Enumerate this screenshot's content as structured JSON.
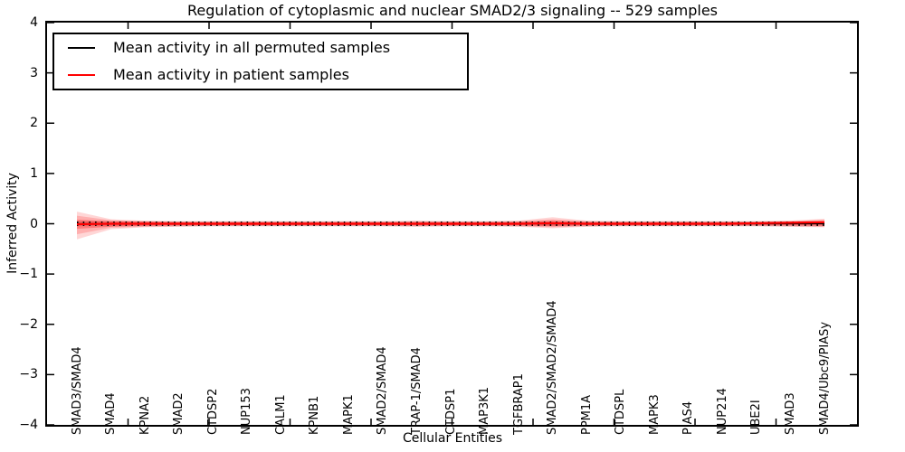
{
  "title": "Regulation of cytoplasmic and nuclear SMAD2/3 signaling -- 529 samples",
  "xlabel": "Cellular Entities",
  "ylabel": "Inferred Activity",
  "legend": [
    {
      "label": "Mean activity in all permuted samples",
      "color": "#000000"
    },
    {
      "label": "Mean activity in patient samples",
      "color": "#ff0000"
    }
  ],
  "chart_data": {
    "type": "line",
    "title": "Regulation of cytoplasmic and nuclear SMAD2/3 signaling -- 529 samples",
    "xlabel": "Cellular Entities",
    "ylabel": "Inferred Activity",
    "ylim": [
      -4,
      4
    ],
    "ytick_labels": [
      "4",
      "3",
      "2",
      "1",
      "0",
      "−1",
      "−2",
      "−3",
      "−4"
    ],
    "grid": false,
    "legend_position": "upper left",
    "categories": [
      "SMAD3/SMAD4",
      "SMAD4",
      "KPNA2",
      "SMAD2",
      "CTDSP2",
      "NUP153",
      "CALM1",
      "KPNB1",
      "MAPK1",
      "SMAD2/SMAD4",
      "TRAP-1/SMAD4",
      "CTDSP1",
      "MAP3K1",
      "TGFBRAP1",
      "SMAD2/SMAD2/SMAD4",
      "PPM1A",
      "CTDSPL",
      "MAPK3",
      "PIAS4",
      "NUP214",
      "UBE2I",
      "SMAD3",
      "SMAD4/Ubc9/PIASy"
    ],
    "series": [
      {
        "name": "Mean activity in all permuted samples",
        "color": "#000000",
        "values": [
          0,
          0,
          0,
          0,
          0,
          0,
          0,
          0,
          0,
          0,
          0,
          0,
          0,
          0,
          0,
          0,
          0,
          0,
          0,
          0,
          0,
          0,
          0
        ]
      },
      {
        "name": "Mean activity in patient samples",
        "color": "#ff0000",
        "values": [
          -0.01,
          0,
          0,
          0,
          0,
          0,
          0,
          0,
          0,
          0,
          0,
          0,
          0,
          0,
          0.01,
          0,
          0,
          0,
          0,
          0,
          0.01,
          0.02,
          0.03
        ]
      }
    ],
    "bands": {
      "permuted": {
        "hi": 0.05,
        "lo": -0.05,
        "color": "rgba(110,110,110,0.28)"
      },
      "patient_outer": {
        "color": "rgba(255,0,0,0.16)",
        "hi": [
          0.24,
          0.09,
          0.06,
          0.05,
          0.05,
          0.05,
          0.05,
          0.05,
          0.05,
          0.05,
          0.06,
          0.05,
          0.05,
          0.06,
          0.13,
          0.06,
          0.05,
          0.05,
          0.05,
          0.05,
          0.05,
          0.06,
          0.1
        ],
        "lo": [
          -0.31,
          -0.11,
          -0.07,
          -0.06,
          -0.05,
          -0.05,
          -0.05,
          -0.05,
          -0.05,
          -0.05,
          -0.06,
          -0.05,
          -0.05,
          -0.06,
          -0.09,
          -0.06,
          -0.05,
          -0.05,
          -0.05,
          -0.05,
          -0.05,
          -0.06,
          -0.07
        ]
      },
      "patient_mid": {
        "color": "rgba(255,0,0,0.18)",
        "hi": [
          0.16,
          0.07,
          0.05,
          0.04,
          0.04,
          0.04,
          0.04,
          0.04,
          0.04,
          0.04,
          0.05,
          0.04,
          0.04,
          0.05,
          0.09,
          0.05,
          0.04,
          0.04,
          0.04,
          0.04,
          0.04,
          0.05,
          0.08
        ],
        "lo": [
          -0.21,
          -0.08,
          -0.06,
          -0.05,
          -0.04,
          -0.04,
          -0.04,
          -0.04,
          -0.04,
          -0.04,
          -0.05,
          -0.04,
          -0.04,
          -0.05,
          -0.07,
          -0.05,
          -0.04,
          -0.04,
          -0.04,
          -0.04,
          -0.04,
          -0.05,
          -0.06
        ]
      },
      "patient_inner": {
        "color": "rgba(255,0,0,0.30)",
        "hi": [
          0.08,
          0.05,
          0.04,
          0.03,
          0.03,
          0.03,
          0.03,
          0.03,
          0.03,
          0.03,
          0.03,
          0.03,
          0.03,
          0.03,
          0.06,
          0.03,
          0.03,
          0.03,
          0.03,
          0.03,
          0.03,
          0.03,
          0.05
        ],
        "lo": [
          -0.1,
          -0.06,
          -0.04,
          -0.03,
          -0.03,
          -0.03,
          -0.03,
          -0.03,
          -0.03,
          -0.03,
          -0.03,
          -0.03,
          -0.03,
          -0.03,
          -0.05,
          -0.03,
          -0.03,
          -0.03,
          -0.03,
          -0.03,
          -0.03,
          -0.03,
          -0.04
        ]
      }
    }
  }
}
